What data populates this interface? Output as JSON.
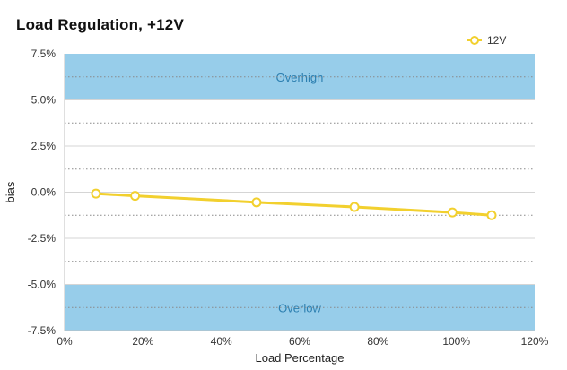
{
  "chart_data": {
    "type": "line",
    "title": "Load Regulation, +12V",
    "xlabel": "Load Percentage",
    "ylabel": "bias",
    "xlim": [
      0,
      120
    ],
    "ylim": [
      -7.5,
      7.5
    ],
    "x_ticks": [
      "0%",
      "20%",
      "40%",
      "60%",
      "80%",
      "100%",
      "120%"
    ],
    "y_ticks": [
      "7.5%",
      "5.0%",
      "2.5%",
      "0.0%",
      "-2.5%",
      "-5.0%",
      "-7.5%"
    ],
    "grid": true,
    "legend_position": "top-right",
    "series": [
      {
        "name": "12V",
        "color": "#f2d02e",
        "x": [
          8,
          18,
          49,
          74,
          99,
          109
        ],
        "y": [
          -0.08,
          -0.2,
          -0.55,
          -0.8,
          -1.1,
          -1.25
        ]
      }
    ],
    "bands": [
      {
        "label": "Overhigh",
        "from": 5.0,
        "to": 7.5,
        "color": "#97cdea",
        "text_color": "#2c7fb0"
      },
      {
        "label": "Overlow",
        "from": -7.5,
        "to": -5.0,
        "color": "#97cdea",
        "text_color": "#2c7fb0"
      }
    ]
  }
}
